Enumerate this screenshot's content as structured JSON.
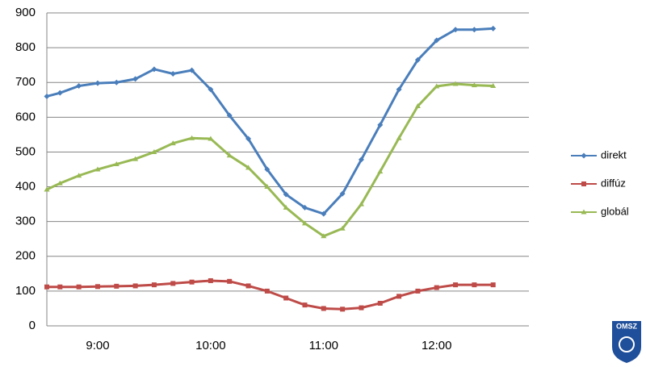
{
  "chart_data": {
    "type": "line",
    "x": [
      "8:33",
      "8:40",
      "8:50",
      "9:00",
      "9:10",
      "9:20",
      "9:30",
      "9:40",
      "9:50",
      "10:00",
      "10:10",
      "10:20",
      "10:30",
      "10:40",
      "10:50",
      "11:00",
      "11:10",
      "11:20",
      "11:30",
      "11:40",
      "11:50",
      "12:00",
      "12:10",
      "12:20",
      "12:30"
    ],
    "series": [
      {
        "name": "direkt",
        "color": "#4a7ebb",
        "marker": "diamond",
        "values": [
          660,
          670,
          690,
          698,
          700,
          710,
          738,
          725,
          735,
          680,
          605,
          538,
          450,
          378,
          340,
          322,
          380,
          478,
          578,
          680,
          765,
          821,
          852,
          852,
          855
        ]
      },
      {
        "name": "diffúz",
        "color": "#be4b48",
        "marker": "square",
        "values": [
          112,
          112,
          112,
          113,
          114,
          115,
          118,
          122,
          126,
          130,
          128,
          115,
          100,
          80,
          60,
          50,
          48,
          52,
          65,
          85,
          100,
          110,
          118,
          118,
          118
        ]
      },
      {
        "name": "globál",
        "color": "#98b954",
        "marker": "triangle",
        "values": [
          392,
          410,
          432,
          450,
          465,
          480,
          500,
          525,
          540,
          538,
          490,
          455,
          400,
          340,
          295,
          258,
          280,
          350,
          444,
          540,
          632,
          689,
          696,
          692,
          690
        ]
      }
    ],
    "xlim": [
      "8:33",
      "12:49"
    ],
    "xticks": [
      "9:00",
      "10:00",
      "11:00",
      "12:00"
    ],
    "ylim": [
      0,
      900
    ],
    "yticks": [
      0,
      100,
      200,
      300,
      400,
      500,
      600,
      700,
      800,
      900
    ],
    "grid": true,
    "legend": "right",
    "logo": "OMSZ"
  }
}
